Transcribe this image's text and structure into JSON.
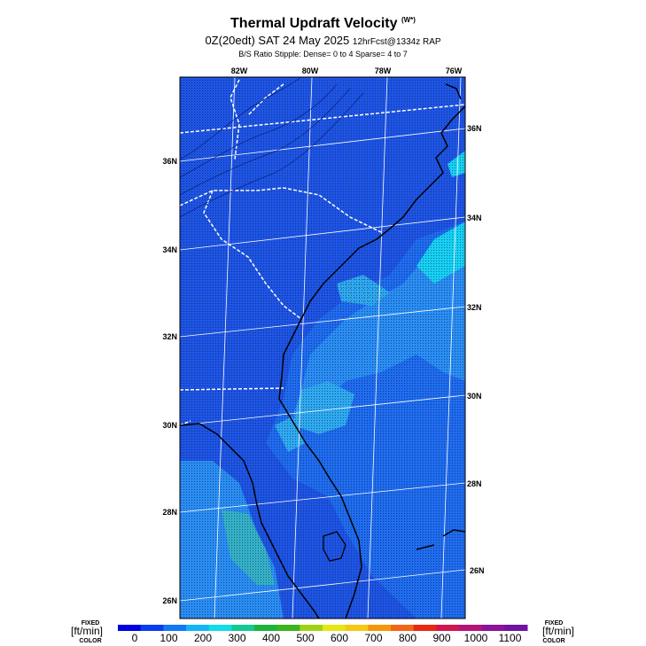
{
  "header": {
    "title": "Thermal Updraft Velocity",
    "title_unit": "(W*)",
    "subtitle_main": "0Z(20edt) SAT 24 May 2025",
    "subtitle_fcst": "12hrFcst@1334z RAP",
    "stipple_note": "B/S Ratio Stipple:  Dense= 0 to 4  Sparse= 4 to 7"
  },
  "map": {
    "lon_labels": [
      "82W",
      "80W",
      "78W",
      "76W"
    ],
    "lat_labels_left": [
      "36N",
      "34N",
      "32N",
      "30N",
      "28N",
      "26N"
    ],
    "lat_labels_right": [
      "36N",
      "34N",
      "32N",
      "30N",
      "28N",
      "26N"
    ],
    "colors": {
      "deep_blue": "#1f4fe0",
      "blue": "#1a66f0",
      "mid_blue": "#2f8ff5",
      "light_blue": "#27aaf0",
      "cyan": "#17d0f5",
      "teal": "#40c8b8",
      "coast": "#000000",
      "state_border": "#ffffff"
    }
  },
  "colorbar": {
    "left_top": "FIXED",
    "left_mid": "[ft/min]",
    "left_bottom": "COLOR",
    "right_top": "FIXED",
    "right_mid": "[ft/min]",
    "right_bottom": "COLOR",
    "ticks": [
      "0",
      "100",
      "200",
      "300",
      "400",
      "500",
      "600",
      "700",
      "800",
      "900",
      "1000",
      "1100"
    ],
    "colors": [
      "#0000e0",
      "#0a3cf0",
      "#1478f5",
      "#14b4f5",
      "#14dce6",
      "#14c896",
      "#1eb43c",
      "#3cb41e",
      "#a0d214",
      "#e6e614",
      "#f5c814",
      "#f5960a",
      "#f56414",
      "#e62814",
      "#d21450",
      "#b4147a",
      "#8c1496",
      "#6e14a0"
    ]
  }
}
